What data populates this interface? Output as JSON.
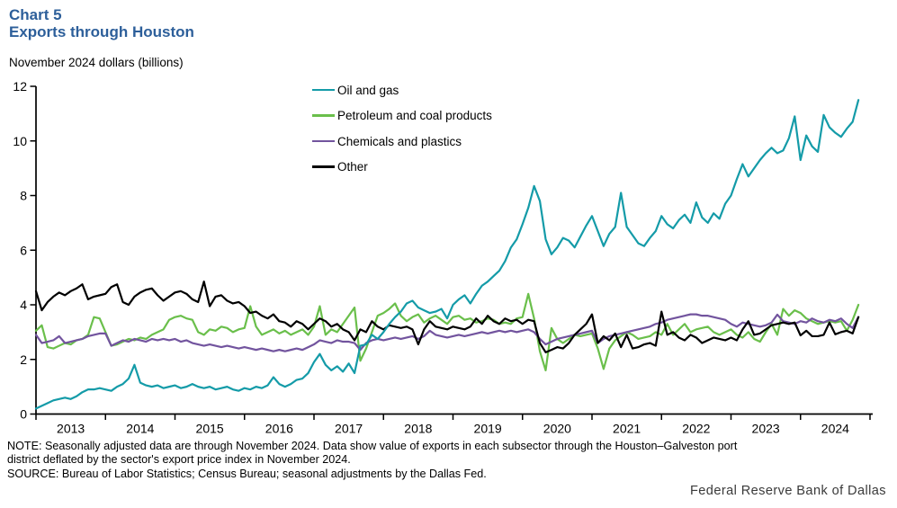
{
  "header": {
    "chart_label": "Chart 5",
    "title": "Exports through Houston",
    "unit_label": "November 2024 dollars (billions)"
  },
  "notes": {
    "note_line1": "NOTE: Seasonally adjusted data are through November 2024. Data show value of exports in each subsector through the Houston–Galveston port",
    "note_line2": "district deflated by the sector's export price index in November 2024.",
    "source_line": "SOURCE: Bureau of Labor Statistics; Census Bureau; seasonal adjustments by the Dallas Fed."
  },
  "footer": {
    "brand": "Federal Reserve Bank of Dallas"
  },
  "chart_data": {
    "type": "line",
    "title": "Exports through Houston",
    "ylabel": "November 2024 dollars (billions)",
    "xlabel": "",
    "grid": false,
    "legend_position": "top-center-inside",
    "ylim": [
      0,
      12
    ],
    "y_ticks": [
      0,
      2,
      4,
      6,
      8,
      10,
      12
    ],
    "x_start": "2013-01",
    "x_end": "2024-11",
    "x_frequency": "monthly",
    "x_year_labels": [
      "2013",
      "2014",
      "2015",
      "2016",
      "2017",
      "2018",
      "2019",
      "2020",
      "2021",
      "2022",
      "2023",
      "2024"
    ],
    "series": [
      {
        "name": "Oil and gas",
        "color": "#149ba8",
        "values": [
          0.2,
          0.3,
          0.4,
          0.5,
          0.55,
          0.6,
          0.55,
          0.65,
          0.8,
          0.9,
          0.9,
          0.95,
          0.9,
          0.85,
          1.0,
          1.1,
          1.3,
          1.8,
          1.15,
          1.05,
          1.0,
          1.05,
          0.95,
          1.0,
          1.05,
          0.95,
          1.0,
          1.1,
          1.0,
          0.95,
          1.0,
          0.9,
          0.95,
          1.0,
          0.9,
          0.85,
          0.95,
          0.9,
          1.0,
          0.95,
          1.05,
          1.35,
          1.1,
          1.0,
          1.1,
          1.25,
          1.3,
          1.5,
          1.9,
          2.2,
          1.8,
          1.6,
          1.75,
          1.55,
          1.85,
          1.5,
          2.5,
          2.55,
          2.9,
          2.75,
          3.0,
          3.3,
          3.55,
          3.75,
          4.05,
          4.15,
          3.9,
          3.8,
          3.7,
          3.75,
          3.85,
          3.5,
          4.0,
          4.2,
          4.35,
          4.05,
          4.4,
          4.7,
          4.85,
          5.05,
          5.25,
          5.6,
          6.1,
          6.4,
          6.95,
          7.55,
          8.35,
          7.8,
          6.4,
          5.85,
          6.1,
          6.45,
          6.35,
          6.1,
          6.5,
          6.9,
          7.25,
          6.7,
          6.15,
          6.6,
          6.85,
          8.1,
          6.85,
          6.55,
          6.25,
          6.15,
          6.45,
          6.7,
          7.25,
          6.95,
          6.8,
          7.1,
          7.3,
          7.0,
          7.75,
          7.2,
          7.0,
          7.35,
          7.15,
          7.7,
          8.0,
          8.6,
          9.15,
          8.7,
          9.0,
          9.3,
          9.55,
          9.75,
          9.55,
          9.65,
          10.1,
          10.9,
          9.3,
          10.2,
          9.8,
          9.6,
          10.95,
          10.5,
          10.3,
          10.15,
          10.45,
          10.7,
          11.5
        ]
      },
      {
        "name": "Petroleum and coal products",
        "color": "#6abf4b",
        "values": [
          3.05,
          3.25,
          2.45,
          2.4,
          2.5,
          2.6,
          2.55,
          2.7,
          2.75,
          2.9,
          3.55,
          3.5,
          3.0,
          2.5,
          2.55,
          2.65,
          2.75,
          2.7,
          2.8,
          2.75,
          2.9,
          3.0,
          3.1,
          3.45,
          3.55,
          3.6,
          3.5,
          3.45,
          3.0,
          2.9,
          3.1,
          3.05,
          3.2,
          3.15,
          3.0,
          3.1,
          3.15,
          3.95,
          3.2,
          2.9,
          3.0,
          3.1,
          2.95,
          3.05,
          2.9,
          3.0,
          3.1,
          2.9,
          3.2,
          3.95,
          2.9,
          3.1,
          3.0,
          3.3,
          3.6,
          3.9,
          1.95,
          2.4,
          3.0,
          3.6,
          3.7,
          3.85,
          4.05,
          3.6,
          3.4,
          3.55,
          3.65,
          3.35,
          3.5,
          3.6,
          3.45,
          3.3,
          3.55,
          3.6,
          3.45,
          3.5,
          3.35,
          3.4,
          3.5,
          3.45,
          3.3,
          3.35,
          3.3,
          3.5,
          3.55,
          4.4,
          3.5,
          2.3,
          1.6,
          3.15,
          2.75,
          2.6,
          2.75,
          2.9,
          2.85,
          2.9,
          2.95,
          2.4,
          1.65,
          2.4,
          2.7,
          2.85,
          3.0,
          2.9,
          2.75,
          2.8,
          2.85,
          3.0,
          2.9,
          3.3,
          2.9,
          3.1,
          3.3,
          3.0,
          3.1,
          3.15,
          3.2,
          3.0,
          2.9,
          3.0,
          3.1,
          2.9,
          2.8,
          3.0,
          2.75,
          2.65,
          3.0,
          3.3,
          2.9,
          3.85,
          3.6,
          3.8,
          3.7,
          3.5,
          3.4,
          3.3,
          3.35,
          3.4,
          3.35,
          3.4,
          3.05,
          3.45,
          4.0
        ]
      },
      {
        "name": "Chemicals and plastics",
        "color": "#72549e",
        "values": [
          2.9,
          2.6,
          2.65,
          2.7,
          2.85,
          2.6,
          2.65,
          2.7,
          2.75,
          2.85,
          2.9,
          2.95,
          2.95,
          2.5,
          2.6,
          2.7,
          2.65,
          2.75,
          2.7,
          2.65,
          2.75,
          2.7,
          2.75,
          2.7,
          2.75,
          2.65,
          2.7,
          2.6,
          2.55,
          2.5,
          2.55,
          2.5,
          2.45,
          2.5,
          2.45,
          2.4,
          2.45,
          2.4,
          2.35,
          2.4,
          2.35,
          2.3,
          2.35,
          2.3,
          2.35,
          2.4,
          2.35,
          2.45,
          2.55,
          2.7,
          2.65,
          2.6,
          2.7,
          2.65,
          2.65,
          2.6,
          2.35,
          2.6,
          2.7,
          2.75,
          2.7,
          2.75,
          2.8,
          2.75,
          2.8,
          2.85,
          2.75,
          2.85,
          3.05,
          2.9,
          2.85,
          2.8,
          2.85,
          2.9,
          2.85,
          2.9,
          2.95,
          3.0,
          2.95,
          3.0,
          3.05,
          3.0,
          3.05,
          3.0,
          3.05,
          3.1,
          3.0,
          2.75,
          2.55,
          2.65,
          2.75,
          2.8,
          2.85,
          2.9,
          2.95,
          3.0,
          3.05,
          2.6,
          2.75,
          2.85,
          2.9,
          2.95,
          3.0,
          3.05,
          3.1,
          3.15,
          3.2,
          3.3,
          3.35,
          3.45,
          3.5,
          3.55,
          3.6,
          3.65,
          3.65,
          3.6,
          3.6,
          3.55,
          3.5,
          3.45,
          3.3,
          3.2,
          3.35,
          3.3,
          3.25,
          3.2,
          3.25,
          3.35,
          3.64,
          3.4,
          3.35,
          3.3,
          3.4,
          3.35,
          3.5,
          3.4,
          3.35,
          3.45,
          3.4,
          3.5,
          3.3,
          3.15,
          3.55
        ]
      },
      {
        "name": "Other",
        "color": "#000000",
        "values": [
          4.5,
          3.8,
          4.1,
          4.3,
          4.45,
          4.35,
          4.5,
          4.6,
          4.75,
          4.2,
          4.3,
          4.35,
          4.4,
          4.65,
          4.75,
          4.1,
          4.0,
          4.3,
          4.45,
          4.55,
          4.6,
          4.35,
          4.15,
          4.3,
          4.45,
          4.5,
          4.4,
          4.2,
          4.1,
          4.85,
          3.95,
          4.3,
          4.35,
          4.15,
          4.05,
          4.1,
          3.95,
          3.7,
          3.75,
          3.6,
          3.5,
          3.65,
          3.4,
          3.35,
          3.2,
          3.4,
          3.3,
          3.1,
          3.3,
          3.5,
          3.4,
          3.2,
          3.3,
          3.1,
          3.0,
          2.7,
          3.1,
          3.0,
          3.4,
          3.2,
          3.1,
          3.25,
          3.2,
          3.15,
          3.2,
          3.1,
          2.55,
          3.1,
          3.4,
          3.2,
          3.15,
          3.1,
          3.2,
          3.15,
          3.1,
          3.2,
          3.5,
          3.3,
          3.6,
          3.4,
          3.3,
          3.5,
          3.4,
          3.45,
          3.3,
          3.45,
          3.4,
          2.6,
          2.26,
          2.35,
          2.45,
          2.4,
          2.6,
          2.9,
          3.1,
          3.3,
          3.65,
          2.6,
          2.85,
          2.7,
          2.95,
          2.45,
          2.9,
          2.4,
          2.45,
          2.55,
          2.6,
          2.5,
          3.75,
          2.9,
          3.0,
          2.8,
          2.7,
          2.9,
          2.8,
          2.6,
          2.7,
          2.8,
          2.75,
          2.7,
          2.8,
          2.7,
          3.1,
          3.4,
          2.9,
          2.95,
          3.1,
          3.25,
          3.3,
          3.35,
          3.3,
          3.35,
          2.88,
          3.05,
          2.85,
          2.85,
          2.9,
          3.35,
          2.92,
          3.0,
          3.05,
          2.95,
          3.55
        ]
      }
    ]
  }
}
